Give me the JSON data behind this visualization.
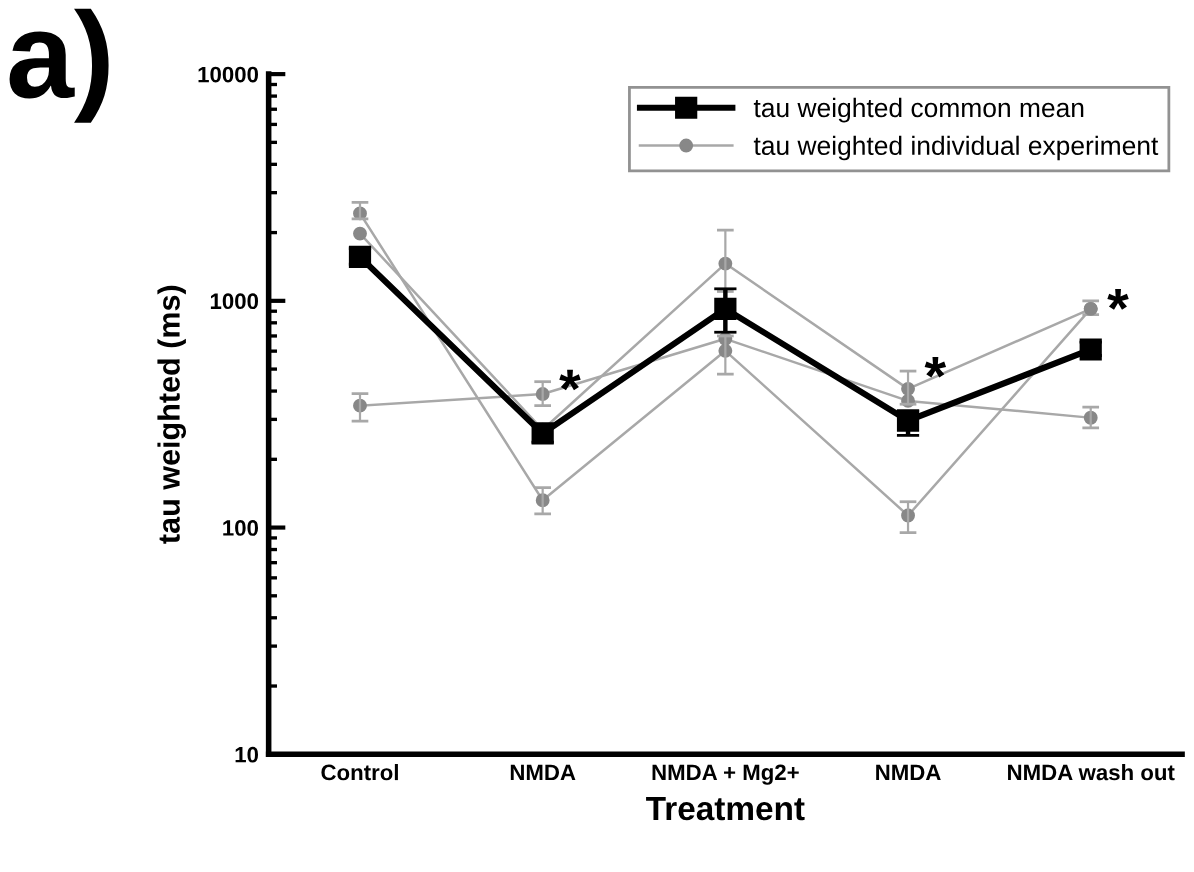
{
  "chart_data": {
    "type": "line",
    "xlabel": "Treatment",
    "ylabel": "tau weighted (ms)",
    "categories": [
      "Control",
      "NMDA",
      "NMDA + Mg2+",
      "NMDA",
      "NMDA wash out"
    ],
    "log": "y",
    "ylim": [
      10,
      10000
    ],
    "yticks": [
      10,
      100,
      1000,
      10000
    ],
    "grid": false,
    "legend": "top right",
    "series": [
      {
        "name": "tau weighted individual experiment",
        "color": "#a8a8a8",
        "marker": "circle",
        "values": [
          345,
          388,
          680,
          362,
          305
        ],
        "errors": [
          [
            295,
            390
          ],
          [
            345,
            440
          ],
          null,
          null,
          [
            275,
            340
          ]
        ]
      },
      {
        "color": "#a8a8a8",
        "marker": "circle",
        "values": [
          2430,
          132,
          602,
          113,
          922
        ],
        "errors": [
          [
            2300,
            2720
          ],
          [
            115,
            150
          ],
          [
            475,
            700
          ],
          [
            95,
            130
          ],
          [
            870,
            1000
          ]
        ]
      },
      {
        "color": "#a8a8a8",
        "marker": "circle",
        "values": [
          1980,
          270,
          1460,
          409,
          922
        ],
        "errors": [
          null,
          null,
          [
            1100,
            2050
          ],
          [
            350,
            490
          ],
          null
        ]
      },
      {
        "name": "tau weighted common mean",
        "color": "#000000",
        "marker": "square",
        "values": [
          1563,
          260,
          922,
          296,
          610
        ],
        "errors": [
          [
            1450,
            1700
          ],
          [
            238,
            285
          ],
          [
            727,
            1130
          ],
          [
            255,
            327
          ],
          [
            574,
            657
          ]
        ]
      }
    ],
    "annotations": [
      "a)",
      "*",
      "*",
      "*"
    ]
  }
}
